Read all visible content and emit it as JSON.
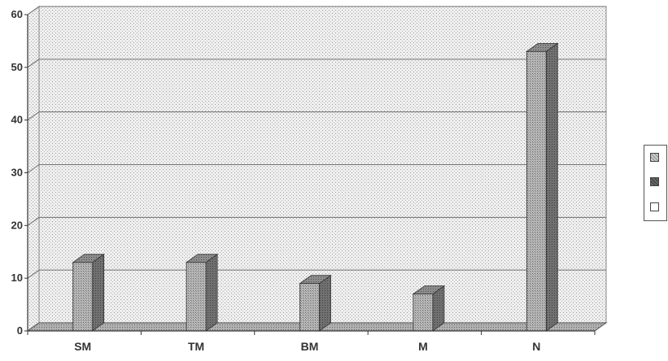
{
  "chart_data": {
    "type": "bar",
    "style": "3d-column",
    "categories": [
      "SM",
      "TM",
      "BM",
      "M",
      "N"
    ],
    "series": [
      {
        "values": [
          13,
          13,
          9,
          7,
          53
        ],
        "color": "#a8a8a8",
        "pattern": "checker"
      },
      {
        "values": [
          0,
          0,
          0,
          0,
          0
        ],
        "color": "#5a5a5a",
        "pattern": "dark"
      },
      {
        "values": [
          0,
          0,
          0,
          0,
          0
        ],
        "color": "#ffffff",
        "pattern": "empty"
      }
    ],
    "y_ticks": [
      "0",
      "10",
      "20",
      "30",
      "40",
      "50",
      "60"
    ],
    "ylim": [
      0,
      60
    ],
    "grid": true,
    "legend": "right",
    "title": "",
    "xlabel": "",
    "ylabel": ""
  }
}
